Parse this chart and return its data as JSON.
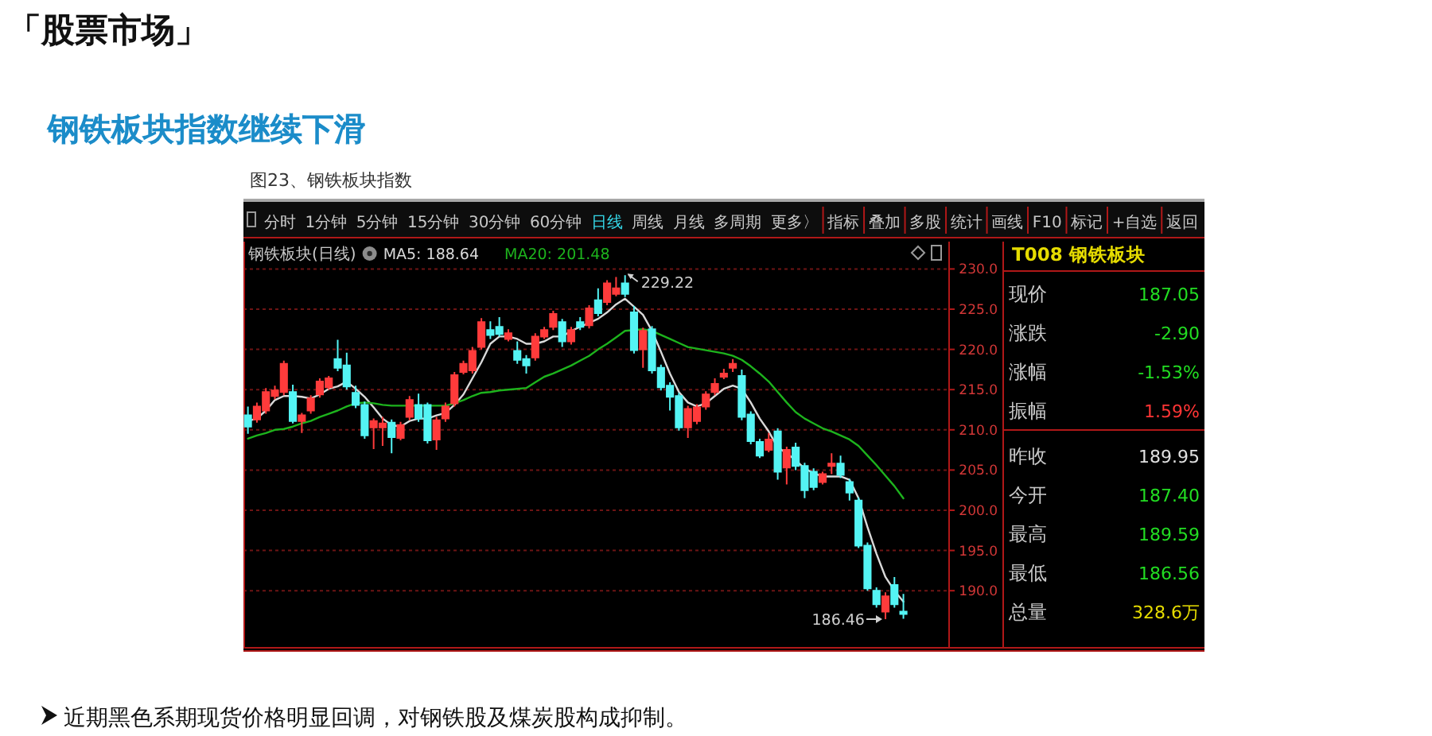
{
  "chart_data": [
    {
      "type": "candlestick",
      "title": "钢铁板块指数继续下滑",
      "subtitle": "图23、钢铁板块指数",
      "categories": [
        null,
        null,
        null,
        null,
        null,
        null,
        null,
        null,
        null,
        null,
        null,
        null,
        null,
        null,
        null,
        null,
        null,
        null,
        null,
        null,
        null,
        null,
        null,
        null,
        null,
        null,
        null,
        null,
        null,
        null,
        null,
        null,
        null,
        null,
        null,
        null,
        null,
        null,
        null,
        null,
        null,
        null,
        null,
        null,
        null,
        null,
        null,
        null,
        null,
        null,
        null,
        null,
        null,
        null,
        null,
        null,
        null,
        null,
        null,
        null,
        null,
        null,
        null,
        null,
        null,
        null,
        null,
        null,
        null,
        null,
        null,
        null,
        null,
        null
      ],
      "ohlc": [
        [
          211.8,
          212.9,
          209.5,
          210.4
        ],
        [
          211.3,
          213.4,
          210.9,
          212.9
        ],
        [
          212.4,
          215.2,
          212.0,
          214.7
        ],
        [
          214.2,
          215.5,
          213.8,
          214.9
        ],
        [
          214.7,
          218.6,
          214.3,
          218.2
        ],
        [
          214.7,
          215.6,
          210.8,
          211.1
        ],
        [
          211.1,
          212.1,
          209.6,
          211.8
        ],
        [
          212.4,
          214.3,
          212.0,
          213.9
        ],
        [
          214.4,
          216.4,
          214.0,
          216.0
        ],
        [
          215.3,
          216.7,
          215.0,
          216.4
        ],
        [
          218.8,
          221.2,
          217.3,
          217.7
        ],
        [
          218.0,
          219.6,
          215.0,
          215.4
        ],
        [
          214.6,
          215.5,
          212.7,
          213.1
        ],
        [
          213.1,
          213.5,
          208.9,
          209.3
        ],
        [
          210.3,
          211.4,
          207.6,
          211.1
        ],
        [
          210.3,
          211.6,
          208.0,
          210.8
        ],
        [
          210.9,
          211.3,
          207.1,
          209.1
        ],
        [
          209.0,
          211.0,
          208.7,
          210.6
        ],
        [
          211.6,
          214.2,
          211.2,
          213.7
        ],
        [
          213.1,
          214.5,
          211.0,
          211.4
        ],
        [
          213.1,
          213.4,
          208.3,
          208.7
        ],
        [
          208.8,
          211.6,
          207.5,
          211.2
        ],
        [
          211.4,
          213.4,
          211.0,
          212.9
        ],
        [
          213.3,
          217.2,
          212.9,
          216.8
        ],
        [
          217.2,
          218.6,
          216.9,
          218.2
        ],
        [
          217.4,
          220.3,
          217.0,
          219.8
        ],
        [
          220.3,
          223.9,
          220.0,
          223.4
        ],
        [
          222.4,
          223.5,
          221.3,
          221.8
        ],
        [
          222.8,
          224.0,
          221.6,
          221.9
        ],
        [
          221.3,
          222.5,
          221.0,
          222.0
        ],
        [
          219.8,
          221.0,
          218.2,
          218.7
        ],
        [
          218.8,
          219.3,
          217.0,
          218.0
        ],
        [
          219.0,
          222.0,
          218.6,
          221.6
        ],
        [
          221.6,
          222.8,
          221.3,
          222.4
        ],
        [
          222.8,
          224.8,
          222.4,
          224.4
        ],
        [
          223.4,
          223.8,
          220.3,
          221.0
        ],
        [
          221.0,
          222.8,
          220.6,
          222.4
        ],
        [
          223.4,
          224.0,
          222.4,
          222.8
        ],
        [
          223.0,
          225.5,
          222.6,
          225.1
        ],
        [
          226.1,
          227.6,
          224.1,
          224.5
        ],
        [
          225.9,
          228.6,
          225.5,
          228.2
        ],
        [
          226.9,
          229.0,
          226.6,
          227.6
        ],
        [
          228.2,
          229.22,
          226.5,
          226.9
        ],
        [
          224.6,
          225.4,
          219.5,
          219.9
        ],
        [
          220.0,
          222.7,
          217.7,
          222.3
        ],
        [
          222.5,
          222.9,
          217.0,
          217.4
        ],
        [
          217.7,
          218.1,
          214.9,
          215.3
        ],
        [
          215.5,
          215.9,
          212.4,
          214.1
        ],
        [
          214.2,
          214.6,
          209.9,
          210.3
        ],
        [
          210.3,
          213.0,
          209.0,
          212.6
        ],
        [
          211.1,
          213.2,
          210.7,
          212.8
        ],
        [
          212.9,
          214.8,
          212.5,
          214.4
        ],
        [
          214.7,
          216.4,
          214.3,
          215.7
        ],
        [
          216.6,
          217.6,
          216.3,
          217.0
        ],
        [
          217.7,
          218.8,
          217.2,
          218.2
        ],
        [
          216.7,
          217.5,
          211.2,
          211.6
        ],
        [
          211.9,
          212.3,
          208.2,
          208.6
        ],
        [
          208.5,
          208.9,
          206.5,
          206.8
        ],
        [
          207.5,
          209.6,
          207.2,
          208.8
        ],
        [
          209.8,
          210.2,
          203.8,
          204.8
        ],
        [
          205.3,
          207.9,
          203.2,
          207.5
        ],
        [
          207.8,
          208.4,
          205.0,
          205.5
        ],
        [
          205.5,
          205.9,
          201.5,
          202.5
        ],
        [
          204.8,
          205.2,
          202.5,
          202.9
        ],
        [
          203.5,
          204.8,
          203.2,
          204.5
        ],
        [
          205.5,
          207.1,
          204.5,
          205.8
        ],
        [
          205.8,
          206.8,
          204.0,
          204.4
        ],
        [
          203.5,
          203.9,
          201.2,
          202.2
        ],
        [
          201.2,
          201.6,
          195.3,
          195.6
        ],
        [
          195.6,
          196.0,
          190.0,
          190.3
        ],
        [
          190.0,
          190.4,
          187.9,
          188.3
        ],
        [
          187.4,
          189.8,
          186.46,
          189.3
        ],
        [
          190.7,
          191.7,
          187.9,
          188.3
        ],
        [
          187.4,
          189.6,
          186.5,
          187.1
        ]
      ],
      "colors": [
        "#54f4f4",
        "#ff3b3b",
        "#ff3b3b",
        "#ff3b3b",
        "#ff3b3b",
        "#54f4f4",
        "#ff3b3b",
        "#ff3b3b",
        "#ff3b3b",
        "#ff3b3b",
        "#54f4f4",
        "#54f4f4",
        "#54f4f4",
        "#54f4f4",
        "#ff3b3b",
        "#ff3b3b",
        "#54f4f4",
        "#ff3b3b",
        "#ff3b3b",
        "#54f4f4",
        "#54f4f4",
        "#ff3b3b",
        "#ff3b3b",
        "#ff3b3b",
        "#ff3b3b",
        "#ff3b3b",
        "#ff3b3b",
        "#54f4f4",
        "#54f4f4",
        "#ff3b3b",
        "#54f4f4",
        "#54f4f4",
        "#ff3b3b",
        "#ff3b3b",
        "#ff3b3b",
        "#54f4f4",
        "#ff3b3b",
        "#54f4f4",
        "#ff3b3b",
        "#54f4f4",
        "#ff3b3b",
        "#ff3b3b",
        "#54f4f4",
        "#54f4f4",
        "#ff3b3b",
        "#54f4f4",
        "#54f4f4",
        "#54f4f4",
        "#54f4f4",
        "#ff3b3b",
        "#ff3b3b",
        "#ff3b3b",
        "#ff3b3b",
        "#ff3b3b",
        "#ff3b3b",
        "#54f4f4",
        "#54f4f4",
        "#54f4f4",
        "#ff3b3b",
        "#54f4f4",
        "#ff3b3b",
        "#54f4f4",
        "#54f4f4",
        "#54f4f4",
        "#ff3b3b",
        "#ff3b3b",
        "#54f4f4",
        "#54f4f4",
        "#54f4f4",
        "#54f4f4",
        "#54f4f4",
        "#ff3b3b",
        "#54f4f4",
        "#54f4f4"
      ],
      "series": [
        {
          "name": "MA5: 188.64",
          "type": "line",
          "color": "#d9d9d9",
          "values": [
            211.1,
            211.4,
            212.4,
            213.7,
            214.2,
            214.2,
            214.1,
            213.9,
            214.4,
            215.1,
            215.4,
            216.0,
            215.1,
            214.1,
            212.8,
            211.4,
            210.6,
            210.4,
            211.1,
            211.4,
            211.4,
            211.8,
            212.1,
            213.1,
            214.4,
            216.4,
            218.4,
            220.7,
            221.6,
            221.6,
            221.3,
            220.7,
            220.7,
            221.0,
            221.6,
            221.6,
            222.3,
            222.8,
            223.3,
            223.8,
            224.6,
            225.6,
            226.3,
            225.3,
            224.3,
            222.3,
            219.7,
            217.0,
            214.7,
            213.4,
            212.9,
            213.3,
            214.2,
            215.1,
            215.5,
            215.1,
            213.4,
            211.4,
            209.8,
            207.8,
            207.1,
            206.2,
            205.2,
            204.6,
            204.2,
            204.2,
            204.2,
            203.8,
            201.5,
            197.9,
            194.6,
            191.7,
            190.0,
            188.64
          ]
        },
        {
          "name": "MA20: 201.48",
          "type": "line",
          "color": "#1db31d",
          "values": [
            208.9,
            209.3,
            209.6,
            210.0,
            210.1,
            210.4,
            210.8,
            211.1,
            211.6,
            212.0,
            212.4,
            212.9,
            213.3,
            213.4,
            213.3,
            213.1,
            213.0,
            213.0,
            213.0,
            213.0,
            213.0,
            213.0,
            213.0,
            213.3,
            213.7,
            214.2,
            214.6,
            214.7,
            214.9,
            215.0,
            215.1,
            215.2,
            215.9,
            216.6,
            217.0,
            217.5,
            218.0,
            218.6,
            219.2,
            220.0,
            220.7,
            221.5,
            222.3,
            222.4,
            222.5,
            222.3,
            221.8,
            221.3,
            220.8,
            220.3,
            220.1,
            219.9,
            219.7,
            219.5,
            219.2,
            218.7,
            217.9,
            217.0,
            216.0,
            214.7,
            213.4,
            212.2,
            211.4,
            210.8,
            210.2,
            209.8,
            209.3,
            208.8,
            208.0,
            206.8,
            205.6,
            204.3,
            203.0,
            201.48
          ]
        }
      ],
      "ylim": [
        183.0,
        233.4
      ],
      "yticks": [
        {
          "value": 190,
          "label": "190.0"
        },
        {
          "value": 195,
          "label": "195.0"
        },
        {
          "value": 200,
          "label": "200.0"
        },
        {
          "value": 205,
          "label": "205.0"
        },
        {
          "value": 210,
          "label": "210.0"
        },
        {
          "value": 215,
          "label": "215.0"
        },
        {
          "value": 220,
          "label": "220.0"
        },
        {
          "value": 225,
          "label": "225.0"
        },
        {
          "value": 230,
          "label": "230.0"
        }
      ],
      "grid": "y",
      "legend": "top left",
      "legend_title": "钢铁板块(日线)",
      "annotations": [
        "「股票市场」",
        "229.22",
        "186.46",
        "近期黑色系期现货价格明显回调，对钢铁股及煤炭股构成抑制。"
      ]
    },
    {
      "type": "other",
      "annotations": [
        "分时",
        "1分钟",
        "5分钟",
        "15分钟",
        "30分钟",
        "60分钟",
        "日线",
        "周线",
        "月线",
        "多周期",
        "更多〉",
        "指标",
        "叠加",
        "多股",
        "统计",
        "画线",
        "F10",
        "标记",
        "+自选",
        "返回"
      ]
    },
    {
      "type": "other",
      "title": "T008 钢铁板块",
      "annotations": [
        "现价",
        "187.05",
        "涨跌",
        "-2.90",
        "涨幅",
        "-1.53%",
        "振幅",
        "1.59%",
        "昨收",
        "189.95",
        "今开",
        "187.40",
        "最高",
        "189.59",
        "最低",
        "186.56",
        "总量",
        "328.6万"
      ]
    }
  ]
}
